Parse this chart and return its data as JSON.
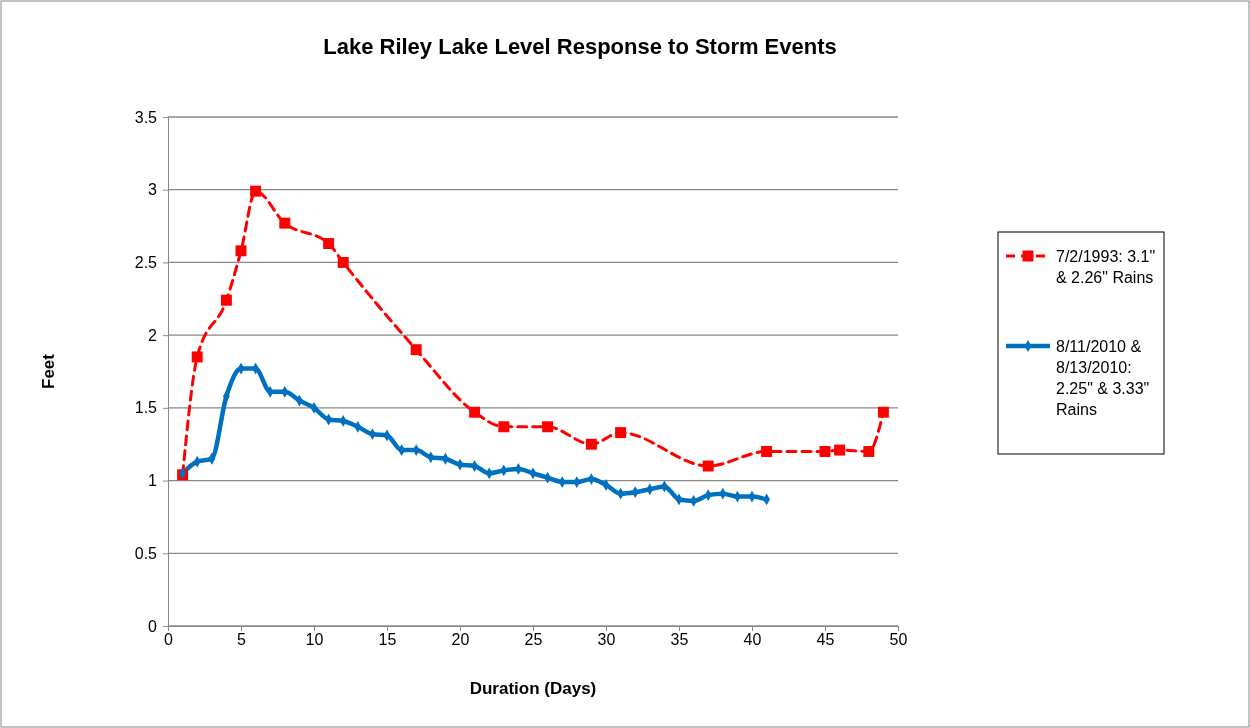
{
  "chart_data": {
    "type": "line",
    "title": "Lake Riley Lake Level Response to Storm Events",
    "xlabel": "Duration (Days)",
    "ylabel": "Feet",
    "xlim": [
      0,
      50
    ],
    "xticks": [
      0,
      5,
      10,
      15,
      20,
      25,
      30,
      35,
      40,
      45,
      50
    ],
    "ylim": [
      0,
      3.5
    ],
    "yticks": [
      0,
      0.5,
      1,
      1.5,
      2,
      2.5,
      3,
      3.5
    ],
    "grid": "y",
    "legend": "right",
    "series": [
      {
        "name": "7/2/1993: 3.1\" & 2.26\" Rains",
        "color": "#ff0000",
        "line_style": "dashed",
        "marker": "square",
        "x": [
          1,
          2,
          4,
          5,
          6,
          8,
          11,
          12,
          17,
          21,
          23,
          26,
          29,
          31,
          37,
          41,
          45,
          46,
          48,
          49
        ],
        "values": [
          1.04,
          1.85,
          2.24,
          2.58,
          2.99,
          2.77,
          2.63,
          2.5,
          1.9,
          1.47,
          1.37,
          1.37,
          1.25,
          1.33,
          1.1,
          1.2,
          1.2,
          1.21,
          1.2,
          1.47
        ]
      },
      {
        "name": "8/11/2010 & 8/13/2010: 2.25\" & 3.33\" Rains",
        "color": "#0070c0",
        "line_style": "solid",
        "marker": "diamond",
        "x": [
          1,
          2,
          3,
          4,
          5,
          6,
          7,
          8,
          9,
          10,
          11,
          12,
          13,
          14,
          15,
          16,
          17,
          18,
          19,
          20,
          21,
          22,
          23,
          24,
          25,
          26,
          27,
          28,
          29,
          30,
          31,
          32,
          33,
          34,
          35,
          36,
          37,
          38,
          39,
          40,
          41
        ],
        "values": [
          1.05,
          1.13,
          1.15,
          1.58,
          1.77,
          1.77,
          1.61,
          1.61,
          1.55,
          1.5,
          1.42,
          1.41,
          1.37,
          1.32,
          1.31,
          1.21,
          1.21,
          1.16,
          1.15,
          1.11,
          1.1,
          1.05,
          1.07,
          1.08,
          1.05,
          1.02,
          0.99,
          0.99,
          1.01,
          0.97,
          0.91,
          0.92,
          0.94,
          0.96,
          0.87,
          0.86,
          0.9,
          0.91,
          0.89,
          0.89,
          0.87
        ]
      }
    ]
  }
}
